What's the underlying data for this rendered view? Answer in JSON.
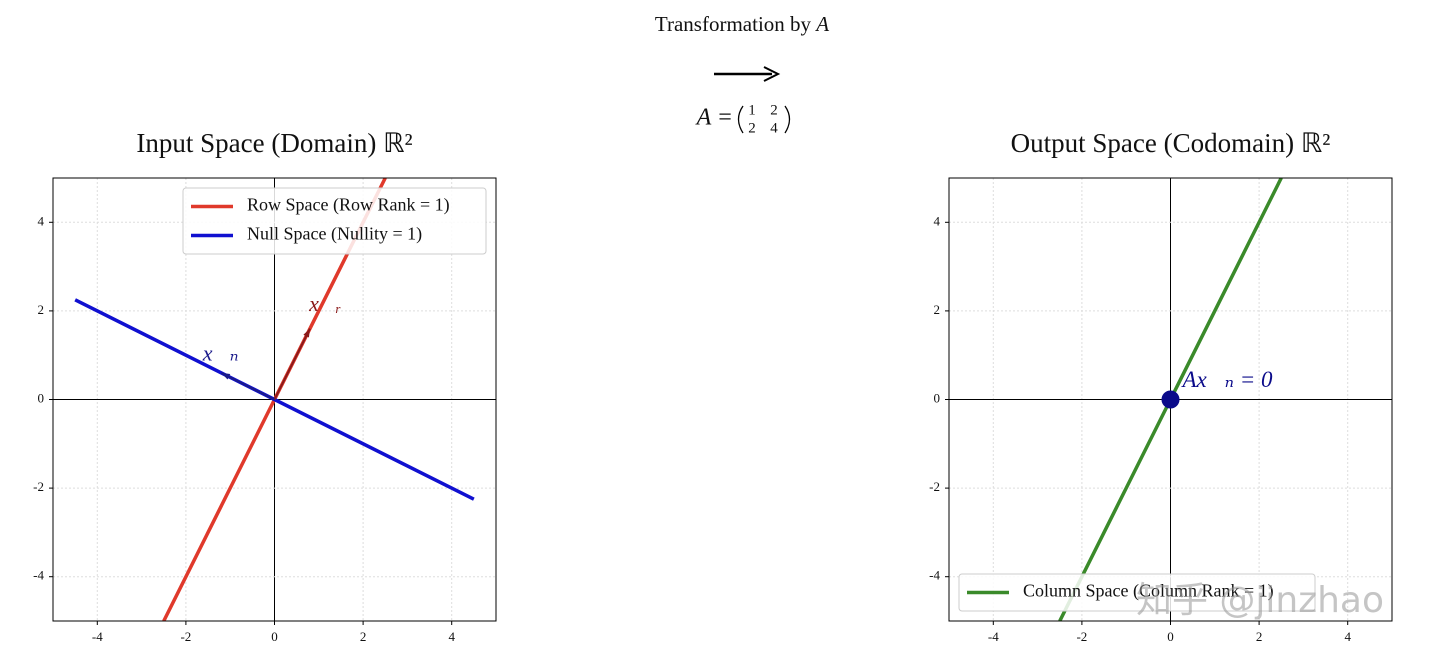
{
  "transformation": {
    "title": "Transformation by",
    "symbol": "A",
    "matrix_name": "A =",
    "matrix": [
      [
        1,
        2
      ],
      [
        2,
        4
      ]
    ]
  },
  "chart_data": [
    {
      "type": "line",
      "title": "Input Space (Domain) ℝ²",
      "xlim": [
        -5,
        5
      ],
      "ylim": [
        -5,
        5
      ],
      "xticks": [
        -4,
        -2,
        0,
        2,
        4
      ],
      "yticks": [
        -4,
        -2,
        0,
        2,
        4
      ],
      "grid": true,
      "legend": "upper-right",
      "series": [
        {
          "name": "Row Space (Row Rank = 1)",
          "color": "#e0392b",
          "x": [
            -2.5,
            2.5
          ],
          "values": [
            -5,
            5
          ]
        },
        {
          "name": "Null Space (Nullity = 1)",
          "color": "#1010d0",
          "x": [
            -4.5,
            4.5
          ],
          "values": [
            2.25,
            -2.25
          ]
        }
      ],
      "vectors": [
        {
          "label": "x⃗ᵣ",
          "color": "#8b1a1a",
          "x": 0.8,
          "y": 1.6
        },
        {
          "label": "x⃗ₙ",
          "color": "#1a1a8b",
          "x": -1.2,
          "y": 0.6
        }
      ]
    },
    {
      "type": "line",
      "title": "Output Space (Codomain) ℝ²",
      "xlim": [
        -5,
        5
      ],
      "ylim": [
        -5,
        5
      ],
      "xticks": [
        -4,
        -2,
        0,
        2,
        4
      ],
      "yticks": [
        -4,
        -2,
        0,
        2,
        4
      ],
      "grid": true,
      "legend": "lower-left",
      "series": [
        {
          "name": "Column Space (Column Rank = 1)",
          "color": "#3a8a2a",
          "x": [
            -2.5,
            2.5
          ],
          "values": [
            -5,
            5
          ]
        }
      ],
      "points": [
        {
          "label": "Ax⃗ₙ = 0⃗",
          "color": "#0a0a8a",
          "x": 0,
          "y": 0
        }
      ]
    }
  ],
  "watermark": "知乎 @jinzhao"
}
